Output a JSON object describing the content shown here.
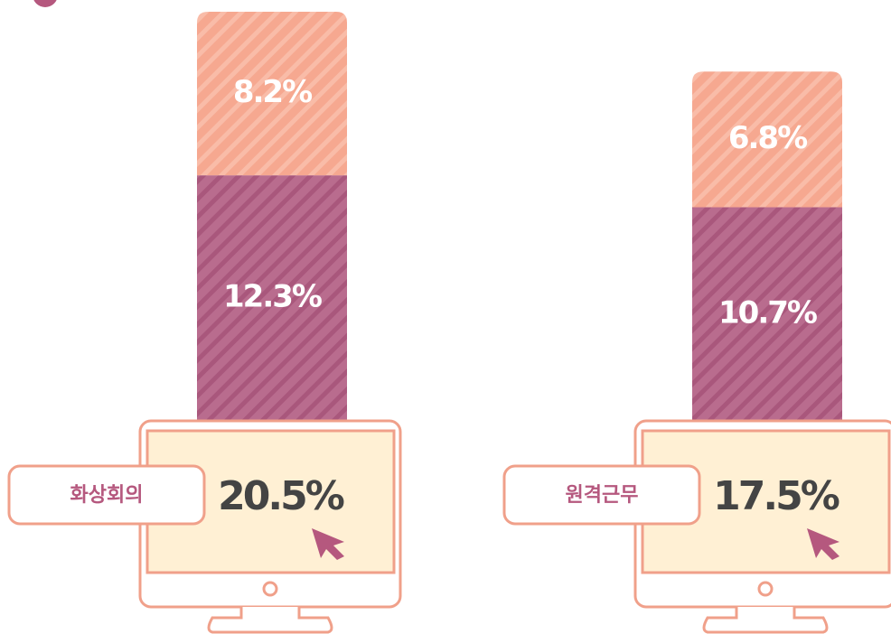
{
  "chart_data": {
    "type": "bar",
    "stacked": true,
    "categories": [
      "화상회의",
      "원격근무"
    ],
    "series": [
      {
        "color": "#b96c8e",
        "values": [
          12.3,
          10.7
        ],
        "value_labels": [
          "12.3%",
          "10.7%"
        ]
      },
      {
        "color": "#f6a890",
        "values": [
          8.2,
          6.8
        ],
        "value_labels": [
          "8.2%",
          "6.8%"
        ]
      }
    ],
    "totals": [
      20.5,
      17.5
    ],
    "total_labels": [
      "20.5%",
      "17.5%"
    ]
  }
}
